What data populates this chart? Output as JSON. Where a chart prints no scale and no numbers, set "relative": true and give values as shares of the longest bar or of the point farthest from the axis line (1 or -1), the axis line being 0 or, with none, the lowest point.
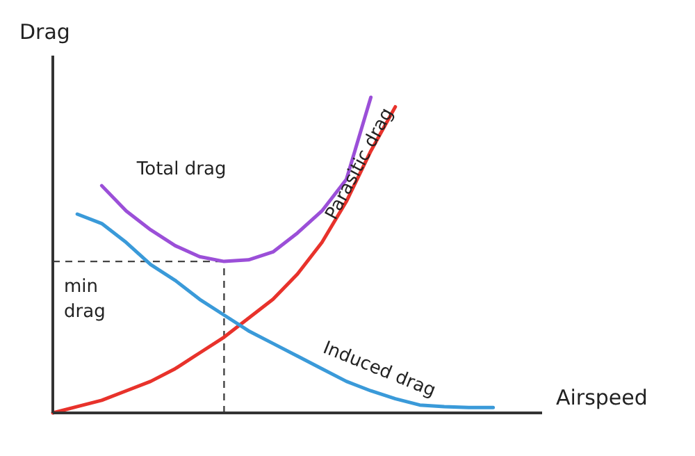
{
  "chart_data": {
    "type": "line",
    "relative": true,
    "xlabel": "Airspeed",
    "ylabel": "Drag",
    "legend": false,
    "marker": "none",
    "line_style": "solid",
    "categories": [
      null,
      null,
      null,
      null,
      null,
      null,
      null,
      null,
      null,
      null,
      null,
      null,
      null,
      null,
      null,
      null,
      null,
      null,
      null
    ],
    "series": [
      {
        "name": "Total drag",
        "color": "#9b4fd8",
        "values": [
          null,
          null,
          0.72,
          0.64,
          0.58,
          0.53,
          0.495,
          0.48,
          0.485,
          0.51,
          0.57,
          0.64,
          0.74,
          1.0,
          null,
          null,
          null,
          null,
          null
        ]
      },
      {
        "name": "Parasitic drag",
        "color": "#e8322b",
        "values": [
          0.0,
          0.02,
          0.04,
          0.07,
          0.1,
          0.14,
          0.19,
          0.24,
          0.3,
          0.36,
          0.44,
          0.54,
          0.67,
          0.83,
          0.97,
          null,
          null,
          null,
          null
        ]
      },
      {
        "name": "Induced drag",
        "color": "#3a9ad9",
        "values": [
          null,
          0.63,
          0.6,
          0.54,
          0.47,
          0.42,
          0.36,
          0.31,
          0.26,
          0.22,
          0.18,
          0.14,
          0.1,
          0.07,
          0.045,
          0.025,
          0.02,
          0.017,
          0.017
        ]
      }
    ],
    "annotations": [
      "min drag"
    ]
  }
}
